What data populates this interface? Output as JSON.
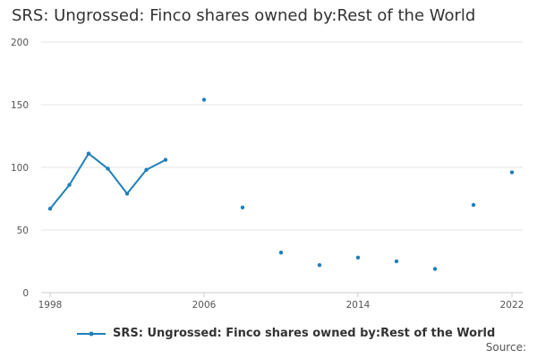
{
  "chart_data": {
    "type": "line",
    "title": "SRS: Ungrossed: Finco shares owned by:Rest of the World",
    "xlabel": "",
    "ylabel": "",
    "ylim": [
      0,
      200
    ],
    "y_ticks": [
      0,
      50,
      100,
      150,
      200
    ],
    "xlim": [
      1998,
      2022
    ],
    "x_ticks": [
      1998,
      2006,
      2014,
      2022
    ],
    "grid": true,
    "legend_position": "bottom",
    "color": "#1f7fba",
    "series": [
      {
        "name": "SRS: Ungrossed: Finco shares owned by:Rest of the World",
        "points": [
          {
            "x": 1998,
            "y": 67
          },
          {
            "x": 1999,
            "y": 86
          },
          {
            "x": 2000,
            "y": 111
          },
          {
            "x": 2001,
            "y": 99
          },
          {
            "x": 2002,
            "y": 79
          },
          {
            "x": 2003,
            "y": 98
          },
          {
            "x": 2004,
            "y": 106
          },
          {
            "x": 2005,
            "y": null
          },
          {
            "x": 2006,
            "y": 154
          },
          {
            "x": 2007,
            "y": null
          },
          {
            "x": 2008,
            "y": 68
          },
          {
            "x": 2009,
            "y": null
          },
          {
            "x": 2010,
            "y": 32
          },
          {
            "x": 2011,
            "y": null
          },
          {
            "x": 2012,
            "y": 22
          },
          {
            "x": 2013,
            "y": null
          },
          {
            "x": 2014,
            "y": 28
          },
          {
            "x": 2015,
            "y": null
          },
          {
            "x": 2016,
            "y": 25
          },
          {
            "x": 2017,
            "y": null
          },
          {
            "x": 2018,
            "y": 19
          },
          {
            "x": 2019,
            "y": null
          },
          {
            "x": 2020,
            "y": 70
          },
          {
            "x": 2021,
            "y": null
          },
          {
            "x": 2022,
            "y": 96
          }
        ]
      }
    ],
    "source_label": "Source:"
  }
}
